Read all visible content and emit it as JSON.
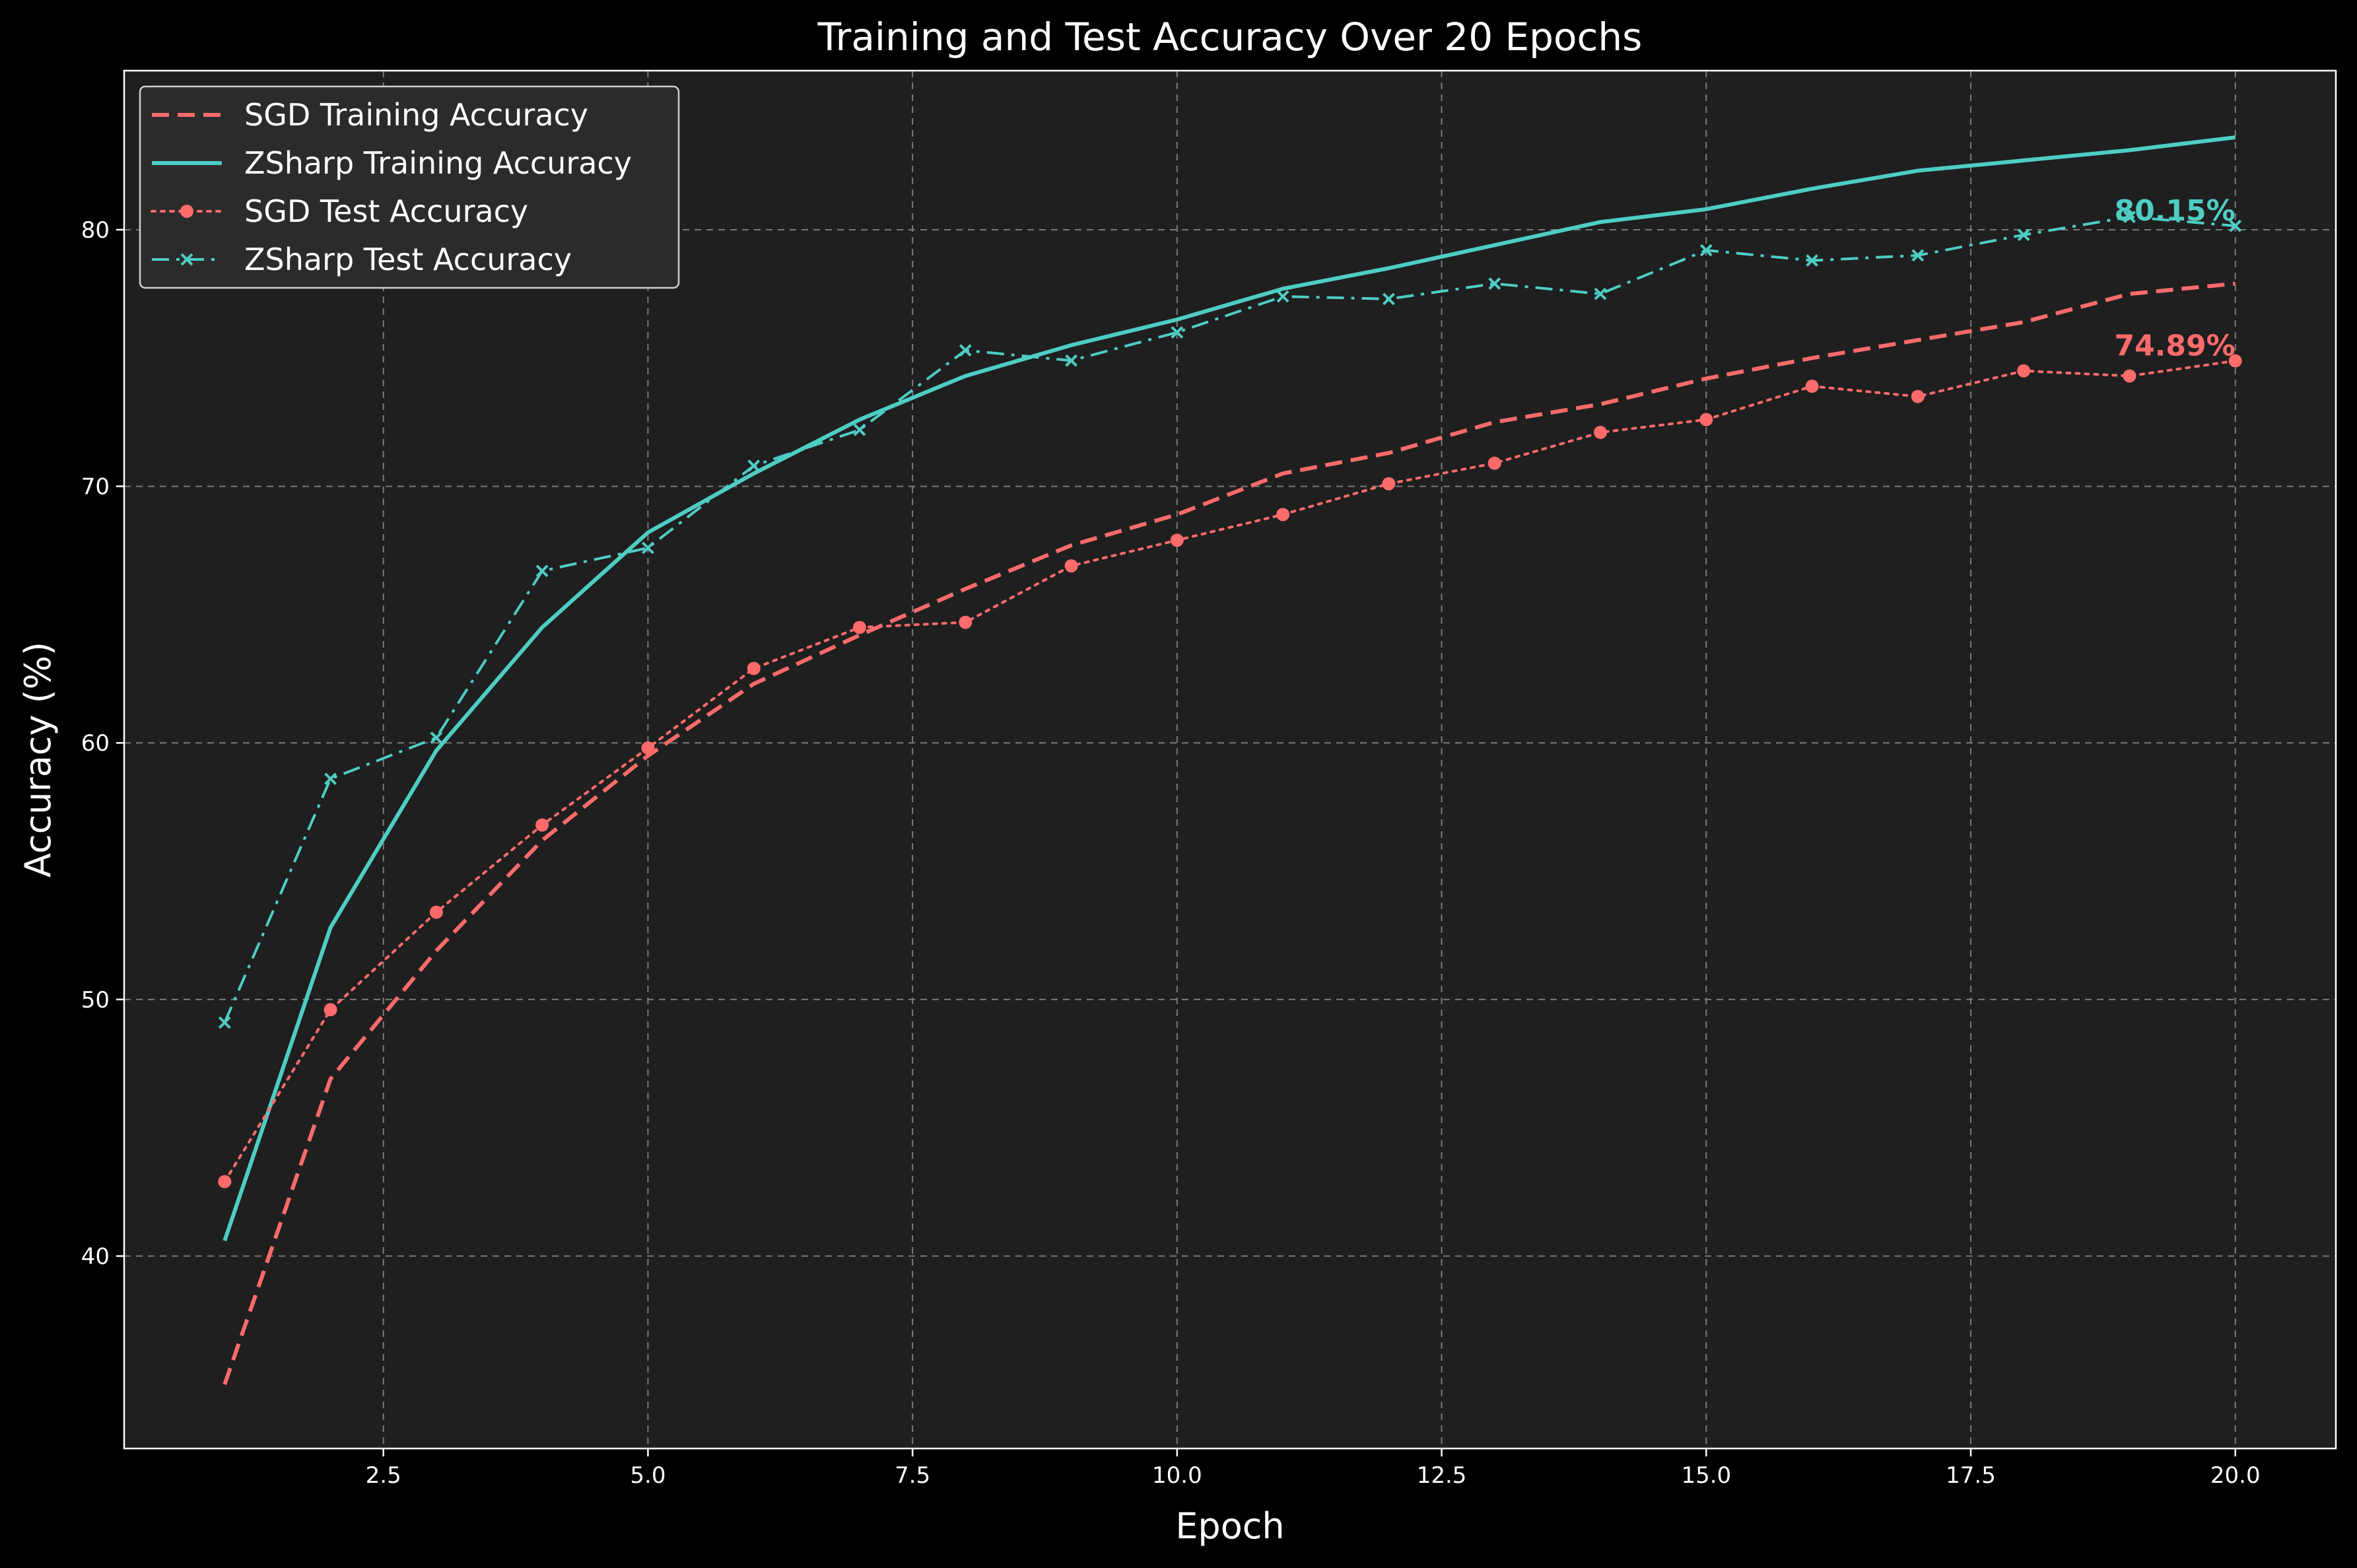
{
  "chart_data": {
    "type": "line",
    "title": "Training and Test Accuracy Over 20 Epochs",
    "xlabel": "Epoch",
    "ylabel": "Accuracy (%)",
    "xlim": [
      0.05,
      20.95
    ],
    "ylim": [
      32.5,
      86.2
    ],
    "xticks": [
      2.5,
      5.0,
      7.5,
      10.0,
      12.5,
      15.0,
      17.5,
      20.0
    ],
    "xtick_labels": [
      "2.5",
      "5.0",
      "7.5",
      "10.0",
      "12.5",
      "15.0",
      "17.5",
      "20.0"
    ],
    "yticks": [
      40,
      50,
      60,
      70,
      80
    ],
    "ytick_labels": [
      "40",
      "50",
      "60",
      "70",
      "80"
    ],
    "grid": true,
    "legend_position": "top-left",
    "x": [
      1,
      2,
      3,
      4,
      5,
      6,
      7,
      8,
      9,
      10,
      11,
      12,
      13,
      14,
      15,
      16,
      17,
      18,
      19,
      20
    ],
    "series": [
      {
        "name": "SGD Training Accuracy",
        "color": "#ff6b6b",
        "style": "dashed",
        "marker": "none",
        "values": [
          35.0,
          46.9,
          51.9,
          56.2,
          59.5,
          62.3,
          64.2,
          66.0,
          67.7,
          68.9,
          70.5,
          71.3,
          72.5,
          73.2,
          74.2,
          75.0,
          75.7,
          76.4,
          77.5,
          77.9
        ]
      },
      {
        "name": "ZSharp Training Accuracy",
        "color": "#4ecdc4",
        "style": "solid",
        "marker": "none",
        "values": [
          40.6,
          52.8,
          59.7,
          64.5,
          68.2,
          70.5,
          72.6,
          74.3,
          75.5,
          76.5,
          77.7,
          78.5,
          79.4,
          80.3,
          80.8,
          81.6,
          82.3,
          82.7,
          83.1,
          83.6
        ]
      },
      {
        "name": "SGD Test Accuracy",
        "color": "#ff6b6b",
        "style": "dotted",
        "marker": "circle",
        "values": [
          42.9,
          49.6,
          53.4,
          56.8,
          59.8,
          62.9,
          64.5,
          64.7,
          66.9,
          67.9,
          68.9,
          70.1,
          70.9,
          72.1,
          72.6,
          73.9,
          73.5,
          74.5,
          74.3,
          74.89
        ]
      },
      {
        "name": "ZSharp Test Accuracy",
        "color": "#4ecdc4",
        "style": "dashdot",
        "marker": "x",
        "values": [
          49.1,
          58.6,
          60.2,
          66.7,
          67.6,
          70.8,
          72.2,
          75.3,
          74.9,
          76.0,
          77.4,
          77.3,
          77.9,
          77.5,
          79.2,
          78.8,
          79.0,
          79.8,
          80.5,
          80.15
        ]
      }
    ],
    "annotations": [
      {
        "text": "80.15%",
        "x": 20,
        "y": 80.15,
        "color": "#4ecdc4"
      },
      {
        "text": "74.89%",
        "x": 20,
        "y": 74.89,
        "color": "#ff6b6b"
      }
    ],
    "colors": {
      "figure_background": "#000000",
      "axes_background": "#1f1f1f",
      "legend_background": "#2b2b2b"
    }
  }
}
